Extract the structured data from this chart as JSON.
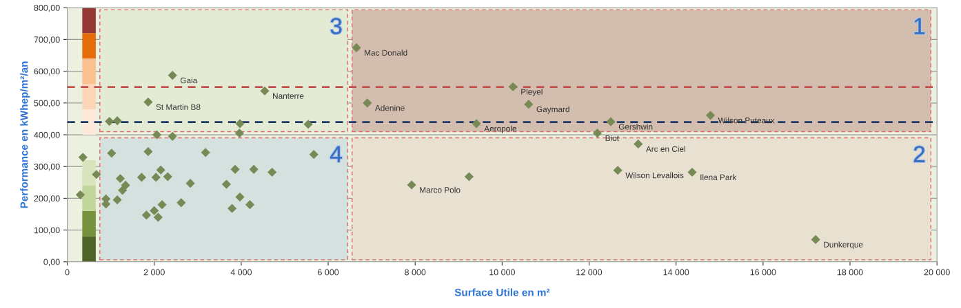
{
  "chart_data": {
    "type": "scatter",
    "xlabel": "Surface Utile en m²",
    "ylabel": "Performance en kWhep/m²/an",
    "xlim": [
      0,
      20000
    ],
    "ylim": [
      0,
      800
    ],
    "xticks": [
      0,
      {
        "value": 2000,
        "label": "2 000"
      },
      {
        "value": 4000,
        "label": "4 000"
      },
      {
        "value": 6000,
        "label": "6 000"
      },
      {
        "value": 8000,
        "label": "8 000"
      },
      {
        "value": 10000,
        "label": "10 000"
      },
      {
        "value": 12000,
        "label": "12 000"
      },
      {
        "value": 14000,
        "label": "14 000"
      },
      {
        "value": 16000,
        "label": "16 000"
      },
      {
        "value": 18000,
        "label": "18 000"
      },
      {
        "value": 20000,
        "label": "20 000"
      }
    ],
    "yticks": [
      {
        "value": 0,
        "label": "0,00"
      },
      {
        "value": 100,
        "label": "100,00"
      },
      {
        "value": 200,
        "label": "200,00"
      },
      {
        "value": 300,
        "label": "300,00"
      },
      {
        "value": 400,
        "label": "400,00"
      },
      {
        "value": 500,
        "label": "500,00"
      },
      {
        "value": 600,
        "label": "600,00"
      },
      {
        "value": 700,
        "label": "700,00"
      },
      {
        "value": 800,
        "label": "800,00"
      }
    ],
    "grid": "y",
    "marker": "diamond",
    "series": [
      {
        "type": "bar",
        "x": [
          500
        ],
        "values": [
          80
        ],
        "base": [
          0
        ],
        "color": "#4f6228"
      },
      {
        "type": "bar",
        "x": [
          500
        ],
        "values": [
          80
        ],
        "base": [
          80
        ],
        "color": "#76923c"
      },
      {
        "type": "bar",
        "x": [
          500
        ],
        "values": [
          80
        ],
        "base": [
          160
        ],
        "color": "#c3d69b"
      },
      {
        "type": "bar",
        "x": [
          500
        ],
        "values": [
          80
        ],
        "base": [
          240
        ],
        "color": "#d7e4bc"
      },
      {
        "type": "bar",
        "x": [
          500
        ],
        "values": [
          80
        ],
        "base": [
          400
        ],
        "color": "#fde9d9"
      },
      {
        "type": "bar",
        "x": [
          500
        ],
        "values": [
          80
        ],
        "base": [
          480
        ],
        "color": "#fbd5b5"
      },
      {
        "type": "bar",
        "x": [
          500
        ],
        "values": [
          80
        ],
        "base": [
          560
        ],
        "color": "#fac090"
      },
      {
        "type": "bar",
        "x": [
          500
        ],
        "values": [
          80
        ],
        "base": [
          640
        ],
        "color": "#e46c0a"
      },
      {
        "type": "bar",
        "x": [
          500
        ],
        "values": [
          80
        ],
        "base": [
          720
        ],
        "color": "#953735"
      },
      {
        "color": "#778a56",
        "x": [
          300,
          360,
          670,
          890,
          890,
          970,
          1020,
          1150,
          1150,
          1220,
          1270,
          1340,
          1710,
          1820,
          1860,
          1860,
          2000,
          2040,
          2060,
          2090,
          2150,
          2180,
          2310,
          2420,
          2420,
          2620,
          2830,
          3180,
          3660,
          3790,
          3860,
          3960,
          3970,
          3970,
          4200,
          4290,
          4540,
          4710,
          5540,
          5670,
          6650,
          6900,
          7920,
          9240,
          9410,
          10250,
          10610,
          12190,
          12500,
          12660,
          13130,
          14370,
          14790,
          17210
        ],
        "values": [
          211,
          329,
          275,
          198,
          182,
          442,
          342,
          195,
          444,
          262,
          225,
          241,
          266,
          147,
          347,
          503,
          161,
          266,
          400,
          140,
          289,
          180,
          268,
          587,
          395,
          186,
          247,
          344,
          244,
          168,
          291,
          405,
          204,
          435,
          180,
          291,
          538,
          282,
          433,
          338,
          674,
          500,
          242,
          268,
          435,
          551,
          496,
          405,
          441,
          288,
          371,
          282,
          461,
          70
        ]
      }
    ],
    "ref_lines": [
      {
        "axis": "y",
        "value": 550,
        "color": "#c0504d",
        "line_style": "dashed"
      },
      {
        "axis": "y",
        "value": 440,
        "color": "#1f3864",
        "line_style": "dashed"
      }
    ],
    "annotations": [
      "1",
      "2",
      "3",
      "4",
      {
        "text": "Gaia",
        "x": 2420,
        "y": 587
      },
      {
        "text": "St Martin B8",
        "x": 1860,
        "y": 503
      },
      {
        "text": "Nanterre",
        "x": 4540,
        "y": 538
      },
      {
        "text": "Mac Donald",
        "x": 6650,
        "y": 674
      },
      {
        "text": "Adenine",
        "x": 6900,
        "y": 500
      },
      {
        "text": "Pleyel",
        "x": 10250,
        "y": 551
      },
      {
        "text": "Gaymard",
        "x": 10610,
        "y": 496
      },
      {
        "text": "Aeropole",
        "x": 9410,
        "y": 435
      },
      {
        "text": "Gershwin",
        "x": 12500,
        "y": 441
      },
      {
        "text": "Biot",
        "x": 12190,
        "y": 405
      },
      {
        "text": "Arc en Ciel",
        "x": 13130,
        "y": 371
      },
      {
        "text": "Marco Polo",
        "x": 7920,
        "y": 242
      },
      {
        "text": "Wilson Levallois",
        "x": 12660,
        "y": 288
      },
      {
        "text": "Wilson Puteaux",
        "x": 14790,
        "y": 461
      },
      {
        "text": "Ilena Park",
        "x": 14370,
        "y": 282
      },
      {
        "text": "Dunkerque",
        "x": 17210,
        "y": 70
      }
    ]
  }
}
